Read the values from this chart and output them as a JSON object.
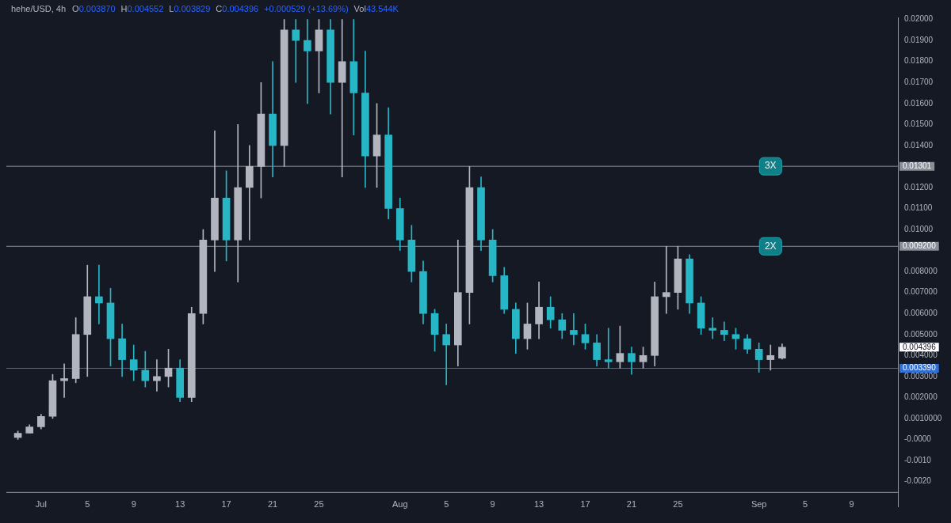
{
  "chart_data": {
    "type": "candlestick",
    "title": "hehe/USD, 4h",
    "annotations": [
      "O0.003870",
      "H0.004552",
      "L0.003829",
      "C0.004396",
      "+0.000529 (+13.69%)",
      "Vol43.544K",
      {
        "text": "3X",
        "x": "--09-02",
        "y": 0.01301
      },
      {
        "text": "2X",
        "x": "--09-02",
        "y": 0.0092
      },
      "0.004396"
    ],
    "x": [
      "--06-29",
      "--06-30",
      "--07-01",
      "--07-02",
      "--07-03",
      "--07-04",
      "--07-05",
      "--07-06",
      "--07-07",
      "--07-08",
      "--07-09",
      "--07-10",
      "--07-11",
      "--07-12",
      "--07-13",
      "--07-14",
      "--07-15",
      "--07-16",
      "--07-17",
      "--07-18",
      "--07-19",
      "--07-20",
      "--07-21",
      "--07-22",
      "--07-23",
      "--07-24",
      "--07-25",
      "--07-26",
      "--07-27",
      "--07-28",
      "--07-29",
      "--07-30",
      "--07-31",
      "--08-01",
      "--08-02",
      "--08-03",
      "--08-04",
      "--08-05",
      "--08-06",
      "--08-07",
      "--08-08",
      "--08-09",
      "--08-10",
      "--08-11",
      "--08-12",
      "--08-13",
      "--08-14",
      "--08-15",
      "--08-16",
      "--08-17",
      "--08-18",
      "--08-19",
      "--08-20",
      "--08-21",
      "--08-22",
      "--08-23",
      "--08-24",
      "--08-25",
      "--08-26",
      "--08-27",
      "--08-28",
      "--08-29",
      "--08-30",
      "--08-31",
      "--09-01",
      "--09-02",
      "--09-03"
    ],
    "ohlc": [
      [
        0.0001,
        0.0004,
        0.0,
        0.0003
      ],
      [
        0.0003,
        0.0007,
        0.0003,
        0.0006
      ],
      [
        0.0006,
        0.0012,
        0.0005,
        0.0011
      ],
      [
        0.0011,
        0.0031,
        0.001,
        0.0028
      ],
      [
        0.0028,
        0.0036,
        0.002,
        0.0029
      ],
      [
        0.0029,
        0.0058,
        0.0027,
        0.005
      ],
      [
        0.005,
        0.0083,
        0.003,
        0.0068
      ],
      [
        0.0068,
        0.0083,
        0.0055,
        0.0065
      ],
      [
        0.0065,
        0.0072,
        0.0035,
        0.0048
      ],
      [
        0.0048,
        0.0055,
        0.003,
        0.0038
      ],
      [
        0.0038,
        0.0045,
        0.0028,
        0.0033
      ],
      [
        0.0033,
        0.0042,
        0.0025,
        0.0028
      ],
      [
        0.0028,
        0.0038,
        0.0023,
        0.003
      ],
      [
        0.003,
        0.0043,
        0.0025,
        0.0034
      ],
      [
        0.0034,
        0.0038,
        0.0018,
        0.002
      ],
      [
        0.002,
        0.0063,
        0.0018,
        0.006
      ],
      [
        0.006,
        0.01,
        0.0055,
        0.0095
      ],
      [
        0.0095,
        0.0147,
        0.008,
        0.0115
      ],
      [
        0.0115,
        0.0128,
        0.0085,
        0.0095
      ],
      [
        0.0095,
        0.015,
        0.0075,
        0.012
      ],
      [
        0.012,
        0.014,
        0.0095,
        0.013
      ],
      [
        0.013,
        0.017,
        0.0115,
        0.0155
      ],
      [
        0.0155,
        0.018,
        0.0125,
        0.014
      ],
      [
        0.014,
        0.02,
        0.013,
        0.0195
      ],
      [
        0.0195,
        0.02,
        0.017,
        0.019
      ],
      [
        0.019,
        0.02,
        0.016,
        0.0185
      ],
      [
        0.0185,
        0.02,
        0.0165,
        0.0195
      ],
      [
        0.0195,
        0.02,
        0.0155,
        0.017
      ],
      [
        0.017,
        0.02,
        0.0125,
        0.018
      ],
      [
        0.018,
        0.02,
        0.0145,
        0.0165
      ],
      [
        0.0165,
        0.0185,
        0.012,
        0.0135
      ],
      [
        0.0135,
        0.016,
        0.012,
        0.0145
      ],
      [
        0.0145,
        0.0158,
        0.0105,
        0.011
      ],
      [
        0.011,
        0.0115,
        0.009,
        0.0095
      ],
      [
        0.0095,
        0.0102,
        0.0075,
        0.008
      ],
      [
        0.008,
        0.0085,
        0.0055,
        0.006
      ],
      [
        0.006,
        0.0062,
        0.0042,
        0.005
      ],
      [
        0.005,
        0.0055,
        0.0026,
        0.0045
      ],
      [
        0.0045,
        0.0095,
        0.0035,
        0.007
      ],
      [
        0.007,
        0.013,
        0.0055,
        0.012
      ],
      [
        0.012,
        0.0125,
        0.009,
        0.0095
      ],
      [
        0.0095,
        0.01,
        0.0075,
        0.0078
      ],
      [
        0.0078,
        0.0082,
        0.006,
        0.0062
      ],
      [
        0.0062,
        0.0065,
        0.0041,
        0.0048
      ],
      [
        0.0048,
        0.0065,
        0.0043,
        0.0055
      ],
      [
        0.0055,
        0.0075,
        0.0048,
        0.0063
      ],
      [
        0.0063,
        0.0068,
        0.0053,
        0.0057
      ],
      [
        0.0057,
        0.006,
        0.0048,
        0.0052
      ],
      [
        0.0052,
        0.006,
        0.0045,
        0.005
      ],
      [
        0.005,
        0.0055,
        0.0043,
        0.0046
      ],
      [
        0.0046,
        0.005,
        0.0035,
        0.0038
      ],
      [
        0.0038,
        0.0053,
        0.0034,
        0.0037
      ],
      [
        0.0037,
        0.0054,
        0.0034,
        0.0041
      ],
      [
        0.0041,
        0.0044,
        0.0031,
        0.0037
      ],
      [
        0.0037,
        0.0044,
        0.0034,
        0.004
      ],
      [
        0.004,
        0.0075,
        0.0035,
        0.0068
      ],
      [
        0.0068,
        0.0092,
        0.006,
        0.007
      ],
      [
        0.007,
        0.0092,
        0.0062,
        0.0086
      ],
      [
        0.0086,
        0.0088,
        0.006,
        0.0065
      ],
      [
        0.0065,
        0.0068,
        0.005,
        0.0053
      ],
      [
        0.0053,
        0.0058,
        0.0048,
        0.0052
      ],
      [
        0.0052,
        0.0056,
        0.0047,
        0.005
      ],
      [
        0.005,
        0.0053,
        0.0043,
        0.0048
      ],
      [
        0.0048,
        0.005,
        0.0041,
        0.0043
      ],
      [
        0.0043,
        0.0046,
        0.0032,
        0.0038
      ],
      [
        0.0038,
        0.0045,
        0.0033,
        0.004
      ],
      [
        0.00387,
        0.004552,
        0.003829,
        0.004396
      ]
    ],
    "xlim": [
      "--06-28",
      "--09-13"
    ],
    "xticks": [
      {
        "value": "--07-01",
        "label": "Jul"
      },
      {
        "value": "--07-05",
        "label": "5"
      },
      {
        "value": "--07-09",
        "label": "9"
      },
      {
        "value": "--07-13",
        "label": "13"
      },
      {
        "value": "--07-17",
        "label": "17"
      },
      {
        "value": "--07-21",
        "label": "21"
      },
      {
        "value": "--07-25",
        "label": "25"
      },
      {
        "value": "--08-01",
        "label": "Aug"
      },
      {
        "value": "--08-05",
        "label": "5"
      },
      {
        "value": "--08-09",
        "label": "9"
      },
      {
        "value": "--08-13",
        "label": "13"
      },
      {
        "value": "--08-17",
        "label": "17"
      },
      {
        "value": "--08-21",
        "label": "21"
      },
      {
        "value": "--08-25",
        "label": "25"
      },
      {
        "value": "--09-01",
        "label": "Sep"
      },
      {
        "value": "--09-05",
        "label": "5"
      },
      {
        "value": "--09-09",
        "label": "9"
      }
    ],
    "ylim": [
      -0.0025,
      0.0201
    ],
    "yticks": [
      {
        "value": 0.02,
        "label": "0.02000"
      },
      {
        "value": 0.019,
        "label": "0.01900"
      },
      {
        "value": 0.018,
        "label": "0.01800"
      },
      {
        "value": 0.017,
        "label": "0.01700"
      },
      {
        "value": 0.016,
        "label": "0.01600"
      },
      {
        "value": 0.015,
        "label": "0.01500"
      },
      {
        "value": 0.014,
        "label": "0.01400"
      },
      {
        "value": 0.012,
        "label": "0.01200"
      },
      {
        "value": 0.011,
        "label": "0.01100"
      },
      {
        "value": 0.01,
        "label": "0.01000"
      },
      {
        "value": 0.008,
        "label": "0.008000"
      },
      {
        "value": 0.007,
        "label": "0.007000"
      },
      {
        "value": 0.006,
        "label": "0.006000"
      },
      {
        "value": 0.005,
        "label": "0.005000"
      },
      {
        "value": 0.004,
        "label": "0.004000"
      },
      {
        "value": 0.003,
        "label": "0.003000"
      },
      {
        "value": 0.002,
        "label": "0.002000"
      },
      {
        "value": 0.001,
        "label": "0.0010000"
      },
      {
        "value": 0,
        "label": "-0.0000"
      },
      {
        "value": -0.001,
        "label": "-0.0010"
      },
      {
        "value": -0.002,
        "label": "-0.0020"
      }
    ],
    "ref_lines": [
      {
        "axis": "y",
        "value": 0.01301,
        "label": "0.01301",
        "color": "#8a8e99"
      },
      {
        "axis": "y",
        "value": 0.0092,
        "label": "0.009200",
        "color": "#8a8e99"
      },
      {
        "axis": "y",
        "value": 0.00339,
        "label": "0.003390",
        "color": "#2f6fd6"
      }
    ],
    "grid": false,
    "legend": false
  }
}
